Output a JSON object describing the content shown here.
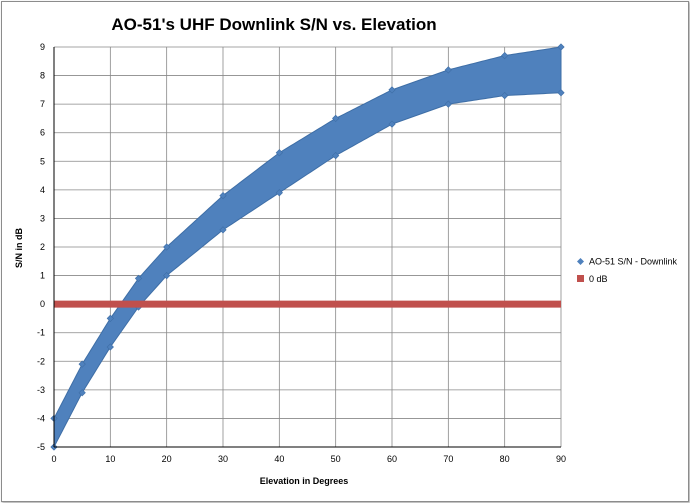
{
  "chart_data": {
    "type": "scatter",
    "title": "AO-51's UHF Downlink S/N vs. Elevation",
    "xlabel": "Elevation in Degrees",
    "ylabel": "S/N in dB",
    "xlim": [
      0,
      90
    ],
    "ylim": [
      -5,
      9
    ],
    "x_ticks": [
      "0",
      "10",
      "20",
      "30",
      "40",
      "50",
      "60",
      "70",
      "80",
      "90"
    ],
    "y_ticks": [
      "-5",
      "-4",
      "-3",
      "-2",
      "-1",
      "0",
      "1",
      "2",
      "3",
      "4",
      "5",
      "6",
      "7",
      "8",
      "9"
    ],
    "grid": true,
    "legend_position": "right",
    "series": [
      {
        "name": "AO-51 S/N - Downlink",
        "color": "#4f81bd",
        "marker": "diamond",
        "x": [
          0,
          5,
          10,
          15,
          20,
          30,
          40,
          50,
          60,
          70,
          80,
          90
        ],
        "upper": [
          -4.0,
          -2.1,
          -0.5,
          0.9,
          2.0,
          3.8,
          5.3,
          6.5,
          7.5,
          8.2,
          8.7,
          9.0
        ],
        "lower": [
          -5.0,
          -3.1,
          -1.5,
          -0.1,
          1.0,
          2.6,
          3.9,
          5.2,
          6.3,
          7.0,
          7.3,
          7.4
        ]
      },
      {
        "name": "0 dB",
        "color": "#c0504d",
        "marker": "square",
        "x": [
          0,
          90
        ],
        "values": [
          0,
          0
        ]
      }
    ]
  }
}
